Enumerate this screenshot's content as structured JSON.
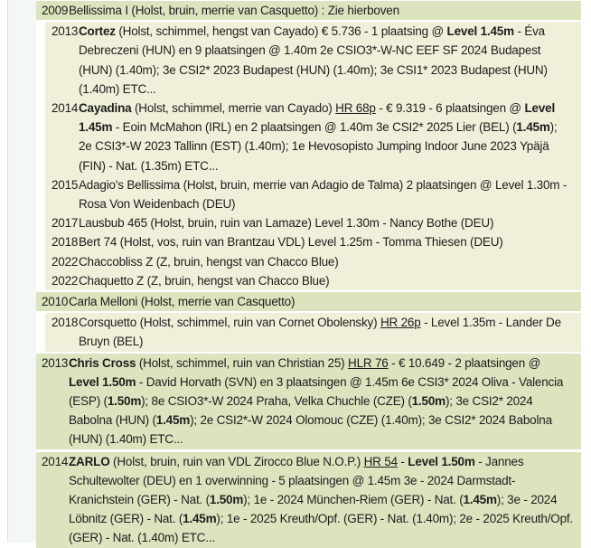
{
  "page": {
    "kind": "offspring-pedigree-list",
    "language": "nl"
  },
  "colors": {
    "parent_row_bg": "#dbe4bf",
    "child_row_bg": "#f0f0da",
    "gutter_bg": "#f3f7f6",
    "gutter_border": "#d9dedc",
    "text": "#1d1d1b"
  },
  "rows": [
    {
      "year": "2009",
      "level": 0,
      "segments": [
        {
          "t": "Bellissima I (Holst, bruin, merrie van Casquetto) : Zie hierboven"
        }
      ]
    },
    {
      "year": "2013",
      "level": 1,
      "segments": [
        {
          "t": "Cortez",
          "b": true
        },
        {
          "t": " (Holst, schimmel, hengst van Cayado) € 5.736 - 1 plaatsing @ "
        },
        {
          "t": "Level 1.45m",
          "b": true
        },
        {
          "t": " - Éva Debreczeni (HUN) en 9 plaatsingen @ 1.40m 2e CSIO3*-W-NC EEF SF 2024 Budapest (HUN) (1.40m); 3e CSI2* 2023 Budapest (HUN) (1.40m); 3e CSI1* 2023 Budapest (HUN) (1.40m) ETC..."
        }
      ]
    },
    {
      "year": "2014",
      "level": 1,
      "segments": [
        {
          "t": "Cayadina",
          "b": true
        },
        {
          "t": " (Holst, schimmel, merrie van Cayado) "
        },
        {
          "t": "HR 68p",
          "u": true
        },
        {
          "t": " - € 9.319 - 6 plaatsingen @ "
        },
        {
          "t": "Level 1.45m",
          "b": true
        },
        {
          "t": " - Eoin McMahon (IRL) en 2 plaatsingen @ 1.40m 3e CSI2* 2025 Lier (BEL) ("
        },
        {
          "t": "1.45m",
          "b": true
        },
        {
          "t": "); 2e CSI3*-W 2023 Tallinn (EST) (1.40m); 1e Hevosopisto Jumping Indoor June 2023 Ypäjä (FIN) - Nat. (1.35m) ETC..."
        }
      ]
    },
    {
      "year": "2015",
      "level": 1,
      "segments": [
        {
          "t": "Adagio's Bellissima (Holst, bruin, merrie van Adagio de Talma) 2 plaatsingen @ Level 1.30m - Rosa Von Weidenbach (DEU)"
        }
      ]
    },
    {
      "year": "2017",
      "level": 1,
      "segments": [
        {
          "t": "Lausbub 465 (Holst, bruin, ruin van Lamaze) Level 1.30m - Nancy Bothe (DEU)"
        }
      ]
    },
    {
      "year": "2018",
      "level": 1,
      "segments": [
        {
          "t": "Bert 74 (Holst, vos, ruin van Brantzau VDL) Level 1.25m - Tomma Thiesen (DEU)"
        }
      ]
    },
    {
      "year": "2022",
      "level": 1,
      "segments": [
        {
          "t": "Chaccobliss Z (Z, bruin, hengst van Chacco Blue)"
        }
      ]
    },
    {
      "year": "2022",
      "level": 1,
      "segments": [
        {
          "t": "Chaquetto Z (Z, bruin, hengst van Chacco Blue)"
        }
      ]
    },
    {
      "year": "2010",
      "level": 0,
      "segments": [
        {
          "t": "Carla Melloni (Holst, merrie van Casquetto)"
        }
      ]
    },
    {
      "year": "2018",
      "level": 1,
      "segments": [
        {
          "t": "Corsquetto (Holst, schimmel, ruin van Cornet Obolensky) "
        },
        {
          "t": "HR 26p",
          "u": true
        },
        {
          "t": " - Level 1.35m - Lander De Bruyn (BEL)"
        }
      ]
    },
    {
      "year": "2013",
      "level": 0,
      "segments": [
        {
          "t": "Chris Cross",
          "b": true
        },
        {
          "t": " (Holst, schimmel, ruin van Christian 25) "
        },
        {
          "t": "HLR 76",
          "u": true
        },
        {
          "t": " - € 10.649 - 2 plaatsingen @ "
        },
        {
          "t": "Level 1.50m",
          "b": true
        },
        {
          "t": " - David Horvath (SVN) en 3 plaatsingen @ 1.45m 6e CSI3* 2024 Oliva - Valencia (ESP) ("
        },
        {
          "t": "1.50m",
          "b": true
        },
        {
          "t": "); 8e CSIO3*-W 2024 Praha, Velka Chuchle (CZE) ("
        },
        {
          "t": "1.50m",
          "b": true
        },
        {
          "t": "); 3e CSI2* 2024 Babolna (HUN) ("
        },
        {
          "t": "1.45m",
          "b": true
        },
        {
          "t": "); 2e CSI2*-W 2024 Olomouc (CZE) (1.40m); 3e CSI2* 2024 Babolna (HUN) (1.40m) ETC..."
        }
      ]
    },
    {
      "year": "2014",
      "level": 0,
      "segments": [
        {
          "t": "ZARLO",
          "b": true
        },
        {
          "t": " (Holst, bruin, ruin van VDL Zirocco Blue N.O.P.) "
        },
        {
          "t": "HR 54",
          "u": true
        },
        {
          "t": " - "
        },
        {
          "t": "Level 1.50m",
          "b": true
        },
        {
          "t": " - Jannes Schultewolter (DEU) en 1 overwinning - 5 plaatsingen @ 1.45m 3e - 2024 Darmstadt-Kranichstein (GER) - Nat. ("
        },
        {
          "t": "1.50m",
          "b": true
        },
        {
          "t": "); 1e - 2024 München-Riem (GER) - Nat. ("
        },
        {
          "t": "1.45m",
          "b": true
        },
        {
          "t": "); 3e - 2024 Löbnitz (GER) - Nat. ("
        },
        {
          "t": "1.45m",
          "b": true
        },
        {
          "t": "); 1e - 2025 Kreuth/Opf. (GER) - Nat. (1.40m); 2e - 2025 Kreuth/Opf. (GER) - Nat. (1.40m) ETC..."
        }
      ]
    }
  ]
}
